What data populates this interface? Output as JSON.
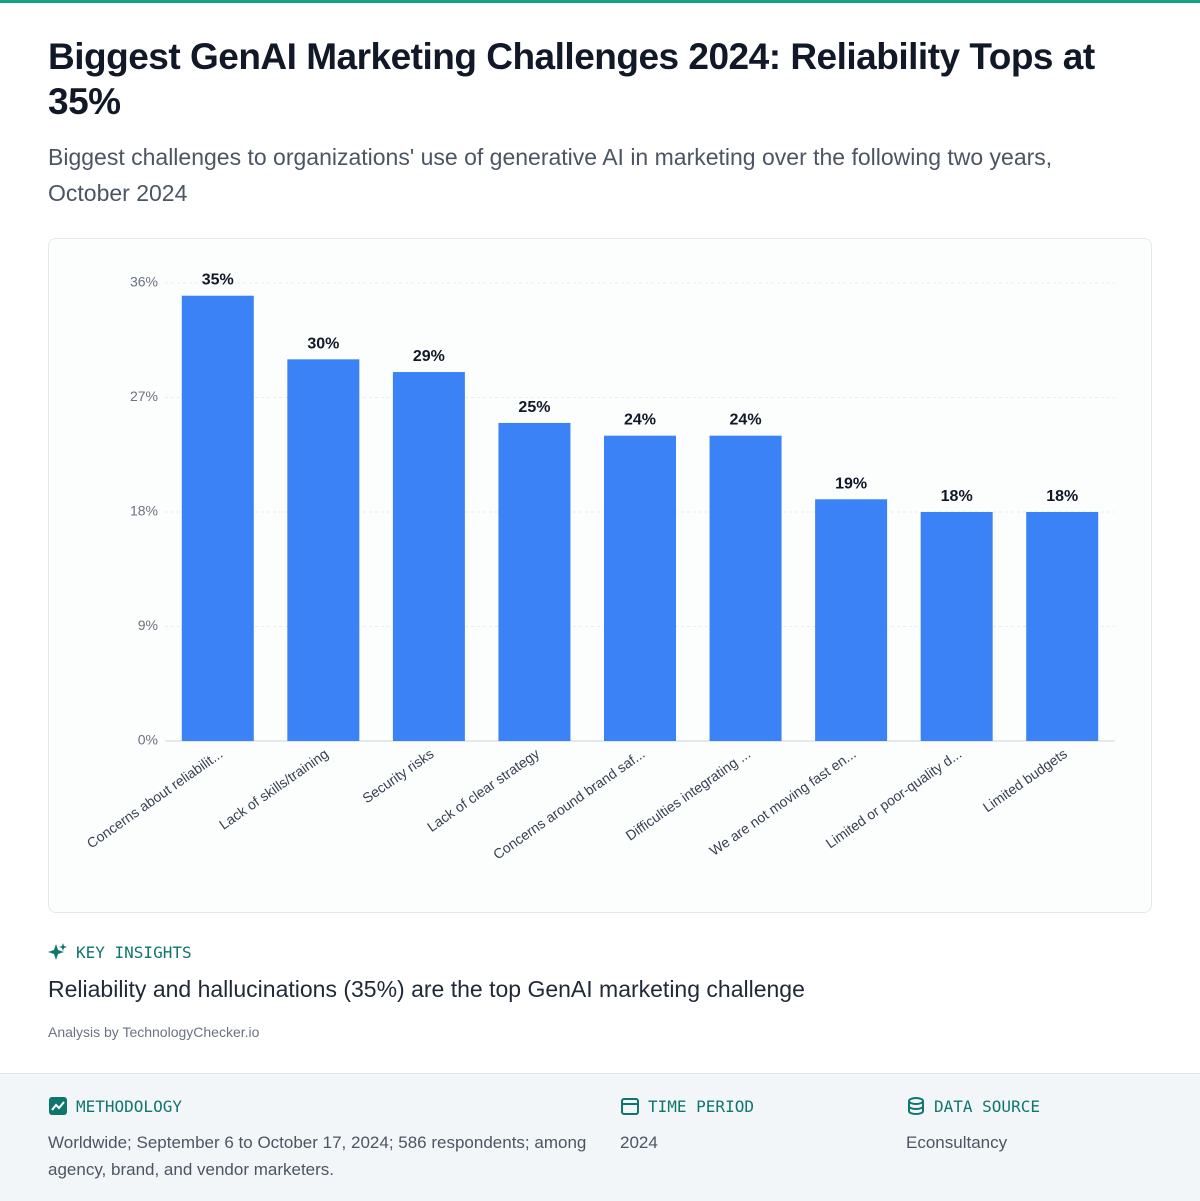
{
  "chart_data": {
    "type": "bar",
    "title": "Biggest GenAI Marketing Challenges 2024: Reliability Tops at 35%",
    "subtitle": "Biggest challenges to organizations' use of generative AI in marketing over the following two years, October 2024",
    "categories": [
      "Concerns about reliabilit...",
      "Lack of skills/training",
      "Security risks",
      "Lack of clear strategy",
      "Concerns around brand saf...",
      "Difficulties integrating ...",
      "We are not moving fast en...",
      "Limited or poor-quality d...",
      "Limited budgets"
    ],
    "values": [
      35,
      30,
      29,
      25,
      24,
      24,
      19,
      18,
      18
    ],
    "value_labels": [
      "35%",
      "30%",
      "29%",
      "25%",
      "24%",
      "24%",
      "19%",
      "18%",
      "18%"
    ],
    "color": "#3b82f6",
    "ylim": [
      0,
      36
    ],
    "yticks": [
      {
        "value": 0,
        "label": "0%"
      },
      {
        "value": 9,
        "label": "9%"
      },
      {
        "value": 18,
        "label": "18%"
      },
      {
        "value": 27,
        "label": "27%"
      },
      {
        "value": 36,
        "label": "36%"
      }
    ],
    "grid": true
  },
  "insights": {
    "heading": "KEY INSIGHTS",
    "text": "Reliability and hallucinations (35%) are the top GenAI marketing challenge",
    "credit": "Analysis by TechnologyChecker.io"
  },
  "footer": {
    "methodology": {
      "heading": "METHODOLOGY",
      "text": "Worldwide; September 6 to October 17, 2024; 586 respondents; among agency, brand, and vendor marketers."
    },
    "time_period": {
      "heading": "TIME PERIOD",
      "text": "2024"
    },
    "data_source": {
      "heading": "DATA SOURCE",
      "text": "Econsultancy"
    }
  }
}
